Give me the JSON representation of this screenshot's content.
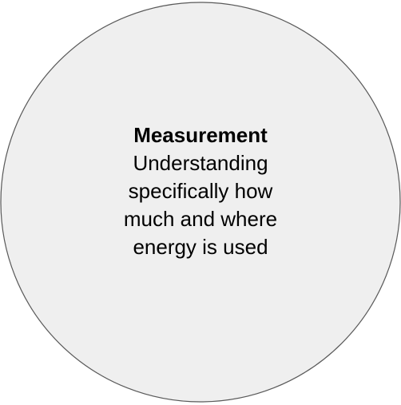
{
  "title": "Measurement",
  "lines": [
    "Understanding",
    "specifically how",
    "much and where",
    "energy is used"
  ]
}
